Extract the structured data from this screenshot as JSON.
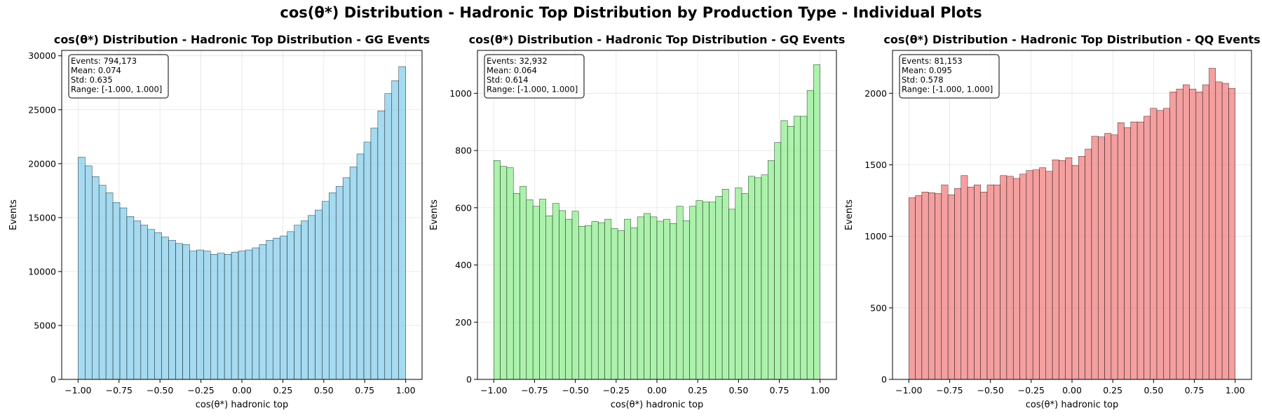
{
  "suptitle": "cos(θ*) Distribution - Hadronic Top Distribution by Production Type - Individual Plots",
  "chart_data": [
    {
      "type": "bar",
      "title": "cos(θ*) Distribution - Hadronic Top Distribution - GG Events",
      "xlabel": "cos(θ*) hadronic top",
      "ylabel": "Events",
      "color": "#87CEEB",
      "xlim": [
        -1.1,
        1.1
      ],
      "ylim": [
        0,
        30500
      ],
      "xticks": [
        -1.0,
        -0.75,
        -0.5,
        -0.25,
        0.0,
        0.25,
        0.5,
        0.75,
        1.0
      ],
      "xtick_labels": [
        "−1.00",
        "−0.75",
        "−0.50",
        "−0.25",
        "0.00",
        "0.25",
        "0.50",
        "0.75",
        "1.00"
      ],
      "yticks": [
        0,
        5000,
        10000,
        15000,
        20000,
        25000,
        30000
      ],
      "ytick_labels": [
        "0",
        "5000",
        "10000",
        "15000",
        "20000",
        "25000",
        "30000"
      ],
      "grid": true,
      "bin_range": [
        -1.0,
        1.0
      ],
      "values": [
        20600,
        19800,
        18800,
        18000,
        17300,
        16400,
        15900,
        15100,
        14700,
        14300,
        13900,
        13600,
        13200,
        12900,
        12600,
        12500,
        11900,
        12000,
        11900,
        11600,
        11700,
        11600,
        11800,
        11900,
        12000,
        12200,
        12500,
        12900,
        13100,
        13300,
        13700,
        14300,
        14700,
        15200,
        15700,
        16500,
        17300,
        17900,
        18700,
        19700,
        20900,
        22000,
        23300,
        24900,
        26500,
        27700,
        29000
      ],
      "stats": [
        "Events: 794,173",
        "Mean: 0.074",
        "Std: 0.635",
        "Range: [-1.000, 1.000]"
      ]
    },
    {
      "type": "bar",
      "title": "cos(θ*) Distribution - Hadronic Top Distribution - GQ Events",
      "xlabel": "cos(θ*) hadronic top",
      "ylabel": "Events",
      "color": "#90EE90",
      "xlim": [
        -1.1,
        1.1
      ],
      "ylim": [
        0,
        1150
      ],
      "xticks": [
        -1.0,
        -0.75,
        -0.5,
        -0.25,
        0.0,
        0.25,
        0.5,
        0.75,
        1.0
      ],
      "xtick_labels": [
        "−1.00",
        "−0.75",
        "−0.50",
        "−0.25",
        "0.00",
        "0.25",
        "0.50",
        "0.75",
        "1.00"
      ],
      "yticks": [
        0,
        200,
        400,
        600,
        800,
        1000
      ],
      "ytick_labels": [
        "0",
        "200",
        "400",
        "600",
        "800",
        "1000"
      ],
      "grid": true,
      "bin_range": [
        -1.0,
        1.0
      ],
      "values": [
        765,
        745,
        740,
        650,
        675,
        628,
        605,
        630,
        572,
        615,
        590,
        560,
        588,
        535,
        538,
        552,
        548,
        560,
        528,
        520,
        560,
        530,
        568,
        580,
        568,
        553,
        560,
        545,
        605,
        555,
        605,
        625,
        620,
        620,
        640,
        665,
        595,
        670,
        650,
        710,
        705,
        715,
        765,
        828,
        905,
        885,
        920,
        920,
        1010,
        1100
      ],
      "stats": [
        "Events: 32,932",
        "Mean: 0.064",
        "Std: 0.614",
        "Range: [-1.000, 1.000]"
      ]
    },
    {
      "type": "bar",
      "title": "cos(θ*) Distribution - Hadronic Top Distribution - QQ Events",
      "xlabel": "cos(θ*) hadronic top",
      "ylabel": "Events",
      "color": "#F08080",
      "xlim": [
        -1.1,
        1.1
      ],
      "ylim": [
        0,
        2300
      ],
      "xticks": [
        -1.0,
        -0.75,
        -0.5,
        -0.25,
        0.0,
        0.25,
        0.5,
        0.75,
        1.0
      ],
      "xtick_labels": [
        "−1.00",
        "−0.75",
        "−0.50",
        "−0.25",
        "0.00",
        "0.25",
        "0.50",
        "0.75",
        "1.00"
      ],
      "yticks": [
        0,
        500,
        1000,
        1500,
        2000
      ],
      "ytick_labels": [
        "0",
        "500",
        "1000",
        "1500",
        "2000"
      ],
      "grid": true,
      "bin_range": [
        -1.0,
        1.0
      ],
      "values": [
        1270,
        1285,
        1310,
        1305,
        1300,
        1360,
        1290,
        1335,
        1425,
        1345,
        1360,
        1310,
        1360,
        1360,
        1425,
        1420,
        1405,
        1435,
        1460,
        1465,
        1480,
        1455,
        1535,
        1530,
        1550,
        1495,
        1560,
        1610,
        1700,
        1695,
        1720,
        1710,
        1795,
        1760,
        1800,
        1800,
        1840,
        1895,
        1880,
        1895,
        2010,
        2030,
        2060,
        2030,
        2010,
        2060,
        2175,
        2080,
        2070,
        2035
      ],
      "stats": [
        "Events: 81,153",
        "Mean: 0.095",
        "Std: 0.578",
        "Range: [-1.000, 1.000]"
      ]
    }
  ]
}
